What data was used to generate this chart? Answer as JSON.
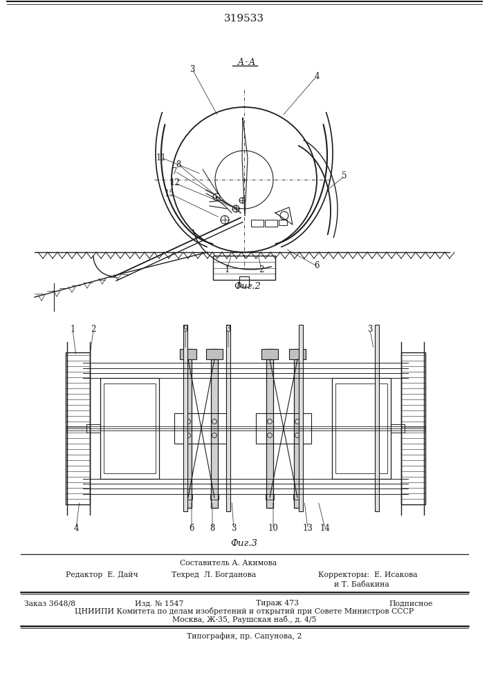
{
  "patent_number": "319533",
  "background_color": "#ffffff",
  "line_color": "#1a1a1a",
  "fig_width": 7.07,
  "fig_height": 10.0,
  "section_label": "A - A",
  "fig2_label": "Фиг.2",
  "fig3_label": "Фиг.3",
  "footer_composer": "Составитель А. Акимова",
  "footer_redaktor": "Редактор  Е. Дайч",
  "footer_tehred": "Техред  Л. Богданова",
  "footer_korrektory": "Корректоры:  Е. Исакова",
  "footer_korrektory2": "и Т. Бабакина",
  "footer_order": "Заказ 3648/8",
  "footer_izdanie": "Изд. № 1547",
  "footer_tirazh": "Тираж 473",
  "footer_podpisnoe": "Подписное",
  "footer_tsnipi": "ЦНИИПИ Комитета по делам изобретений и открытий при Совете Министров СССР",
  "footer_moscow": "Москва, Ж-35, Раушская наб., д. 4/5",
  "footer_tipografia": "Типография, пр. Сапунова, 2"
}
